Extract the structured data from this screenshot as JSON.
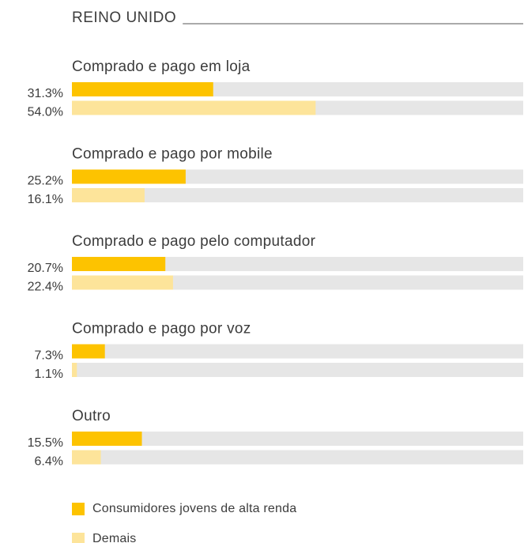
{
  "chart_data": {
    "type": "bar",
    "orientation": "horizontal",
    "title": "REINO UNIDO",
    "categories": [
      "Comprado e pago em loja",
      "Comprado e pago por mobile",
      "Comprado e pago pelo computador",
      "Comprado e pago por voz",
      "Outro"
    ],
    "series": [
      {
        "name": "Consumidores jovens de alta renda",
        "color": "#fdc300",
        "values": [
          31.3,
          25.2,
          20.7,
          7.3,
          15.5
        ],
        "value_labels": [
          "31.3%",
          "25.2%",
          "20.7%",
          "7.3%",
          "15.5%"
        ]
      },
      {
        "name": "Demais",
        "color": "#fde49a",
        "values": [
          54.0,
          16.1,
          22.4,
          1.1,
          6.4
        ],
        "value_labels": [
          "54.0%",
          "16.1%",
          "22.4%",
          "1.1%",
          "6.4%"
        ]
      }
    ],
    "xlim": [
      0,
      100
    ],
    "track_color": "#e6e6e6"
  }
}
